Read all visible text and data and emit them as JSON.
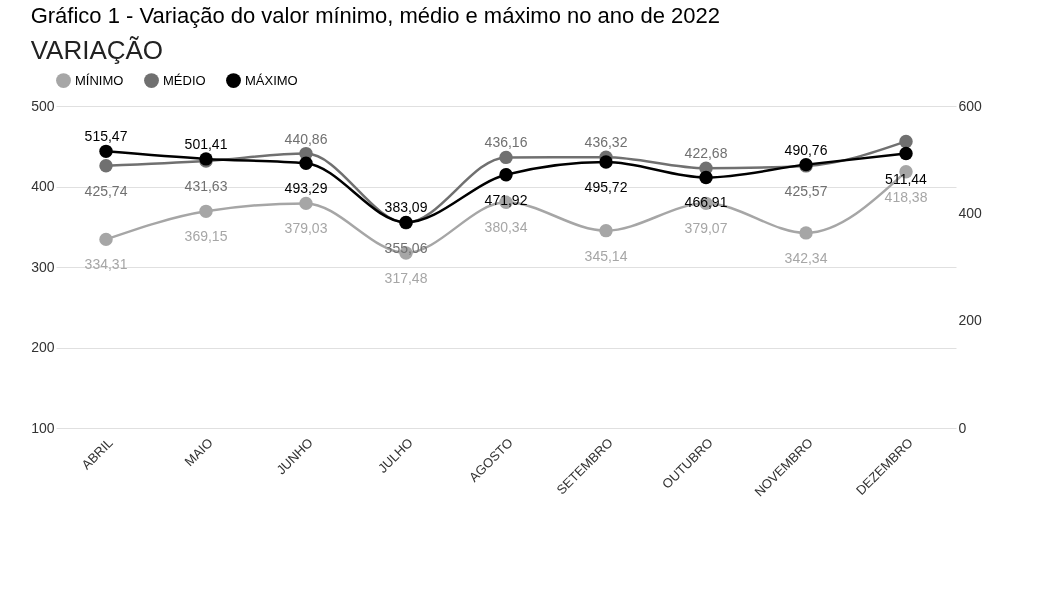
{
  "chart_data": {
    "type": "line",
    "title": "Gráfico 1 - Variação do valor mínimo, médio e máximo no ano de 2022",
    "subtitle": "VARIAÇÃO",
    "categories": [
      "ABRIL",
      "MAIO",
      "JUNHO",
      "JULHO",
      "AGOSTO",
      "SETEMBRO",
      "OUTUBRO",
      "NOVEMBRO",
      "DEZEMBRO"
    ],
    "series": [
      {
        "name": "MÍNIMO",
        "color": "#a6a6a6",
        "values": [
          334.31,
          369.15,
          379.03,
          317.48,
          380.34,
          345.14,
          379.07,
          342.34,
          418.38
        ],
        "value_labels": [
          "334,31",
          "369,15",
          "379,03",
          "317,48",
          "380,34",
          "345,14",
          "379,07",
          "342,34",
          "418,38"
        ]
      },
      {
        "name": "MÉDIO",
        "color": "#707070",
        "values": [
          425.74,
          431.63,
          440.86,
          355.06,
          436.16,
          436.32,
          422.68,
          425.57,
          456
        ],
        "value_labels": [
          "425,74",
          "431,63",
          "440,86",
          "355,06",
          "436,16",
          "436,32",
          "422,68",
          "425,57",
          null
        ]
      },
      {
        "name": "MÁXIMO",
        "color": "#000000",
        "axis": "y2",
        "values": [
          515.47,
          501.41,
          493.29,
          383.09,
          471.92,
          495.72,
          466.91,
          490.76,
          511.44
        ],
        "value_labels": [
          "515,47",
          "501,41",
          "493,29",
          "383,09",
          "471,92",
          "495,72",
          "466,91",
          "490,76",
          "511,44"
        ]
      }
    ],
    "ylim": [
      100,
      500
    ],
    "yticks": [
      100,
      200,
      300,
      400,
      500
    ],
    "y2lim": [
      0,
      600
    ],
    "y2ticks": [
      0,
      200,
      400,
      600
    ],
    "grid": "y",
    "legend": "top",
    "marker": "circle",
    "line_style": "solid"
  }
}
